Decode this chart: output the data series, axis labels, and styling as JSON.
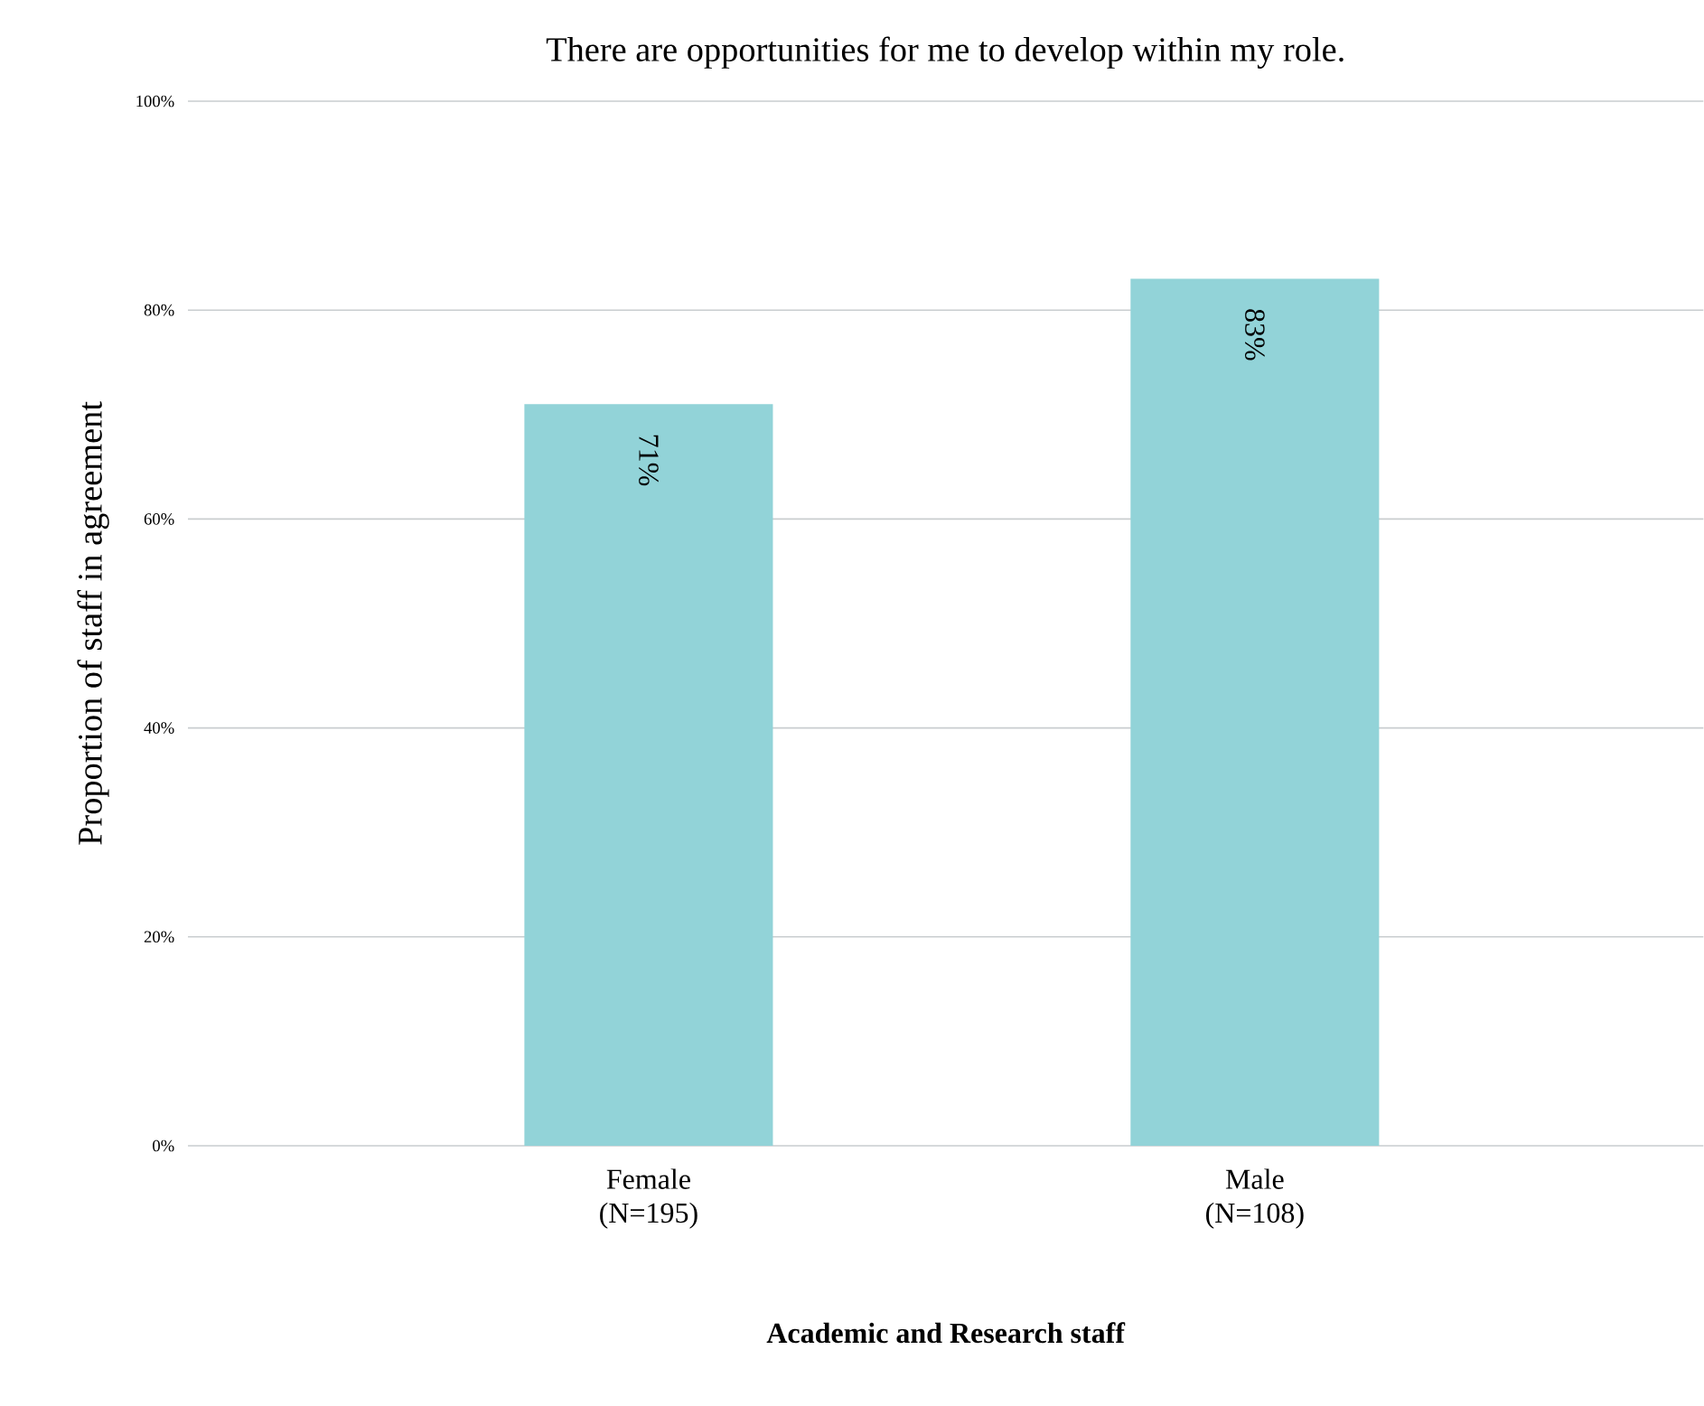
{
  "chart_data": {
    "type": "bar",
    "title": "There are opportunities for me to develop within my role.",
    "xlabel": "Academic and Research staff",
    "ylabel": "Proportion of staff in agreement",
    "categories": [
      "Female (N=195)",
      "Male (N=108)"
    ],
    "values": [
      71,
      83
    ],
    "value_labels": [
      "71%",
      "83%"
    ],
    "color": "#92d3d8",
    "ylim": [
      0,
      100
    ],
    "yticks": [
      {
        "value": 0,
        "label": "0%"
      },
      {
        "value": 20,
        "label": "20%"
      },
      {
        "value": 40,
        "label": "40%"
      },
      {
        "value": 60,
        "label": "60%"
      },
      {
        "value": 80,
        "label": "80%"
      },
      {
        "value": 100,
        "label": "100%"
      }
    ],
    "grid": "y"
  }
}
